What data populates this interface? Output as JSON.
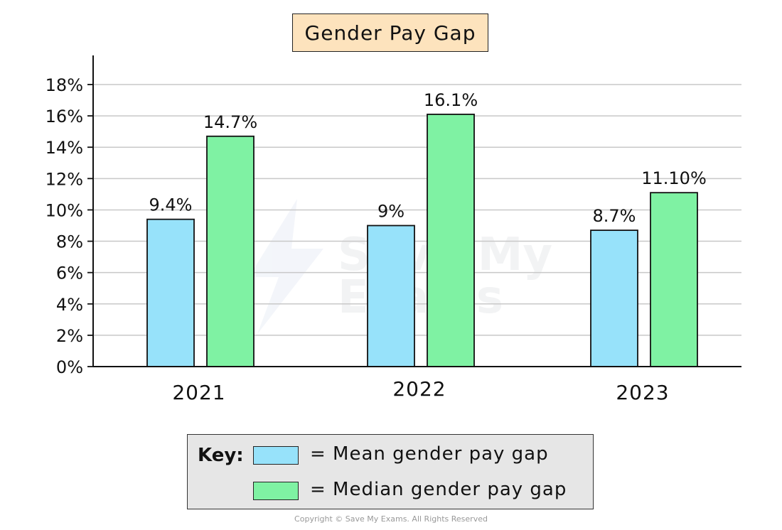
{
  "chart_data": {
    "type": "bar",
    "title": "Gender Pay Gap",
    "categories": [
      "2021",
      "2022",
      "2023"
    ],
    "series": [
      {
        "name": "Mean gender pay gap",
        "values": [
          9.4,
          9,
          8.7
        ],
        "labels": [
          "9.4%",
          "9%",
          "8.7%"
        ],
        "color": "#97e2fa"
      },
      {
        "name": "Median gender pay gap",
        "values": [
          14.7,
          16.1,
          11.1
        ],
        "labels": [
          "14.7%",
          "16.1%",
          "11.10%"
        ],
        "color": "#7ff2a3"
      }
    ],
    "ylim": [
      0,
      18
    ],
    "yticks": [
      "0%",
      "2%",
      "4%",
      "6%",
      "8%",
      "10%",
      "12%",
      "14%",
      "16%",
      "18%"
    ],
    "grid": true,
    "legend_title": "Key:",
    "legend": [
      {
        "color": "#97e2fa",
        "text": "= Mean gender pay gap"
      },
      {
        "color": "#7ff2a3",
        "text": "= Median gender pay gap"
      }
    ]
  },
  "watermark": {
    "line1": "Save My",
    "line2": "Exams"
  },
  "copyright": "Copyright © Save My Exams. All Rights Reserved"
}
